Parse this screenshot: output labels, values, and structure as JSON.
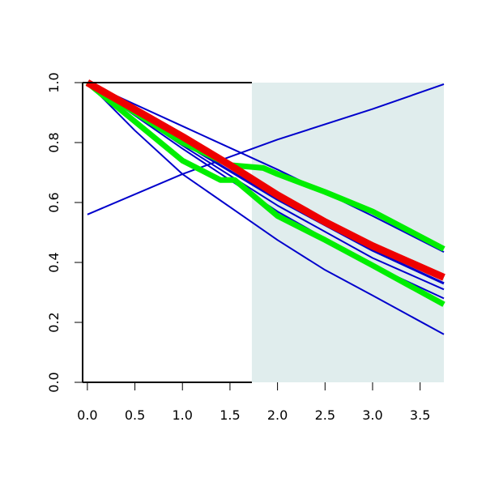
{
  "chart_data": {
    "type": "line",
    "title": "",
    "xlabel": "",
    "ylabel": "",
    "xlim": [
      -0.05,
      3.75
    ],
    "ylim": [
      0,
      1
    ],
    "x_ticks": [
      0.0,
      0.5,
      1.0,
      1.5,
      2.0,
      2.5,
      3.0,
      3.5
    ],
    "x_tick_labels": [
      "0.0",
      "0.5",
      "1.0",
      "1.5",
      "2.0",
      "2.5",
      "3.0",
      "3.5"
    ],
    "y_ticks": [
      0.0,
      0.2,
      0.4,
      0.6,
      0.8,
      1.0
    ],
    "y_tick_labels": [
      "0.0",
      "0.2",
      "0.4",
      "0.6",
      "0.8",
      "1.0"
    ],
    "grid": false,
    "shaded_region": {
      "x_from": 1.73,
      "x_to": 3.75,
      "color": "#e0eded"
    },
    "series": [
      {
        "color": "#0000cc",
        "weight": "thin",
        "x": [
          0.0,
          1.0,
          2.0,
          3.0,
          3.75
        ],
        "y": [
          0.56,
          0.695,
          0.81,
          0.912,
          0.995
        ]
      },
      {
        "color": "#0000cc",
        "weight": "thin",
        "x": [
          0.0,
          0.5,
          1.0,
          1.5,
          2.0,
          2.5,
          3.0,
          3.75
        ],
        "y": [
          1.0,
          0.84,
          0.695,
          0.585,
          0.475,
          0.375,
          0.29,
          0.16
        ]
      },
      {
        "color": "#0000cc",
        "weight": "thin",
        "x": [
          0.0,
          1.0,
          2.0,
          3.0,
          3.75
        ],
        "y": [
          1.0,
          0.855,
          0.71,
          0.555,
          0.435
        ]
      },
      {
        "color": "#0000cc",
        "weight": "thin",
        "x": [
          0.0,
          1.0,
          2.0,
          3.0,
          3.75
        ],
        "y": [
          1.0,
          0.79,
          0.59,
          0.415,
          0.31
        ]
      },
      {
        "color": "#0000cc",
        "weight": "thin",
        "x": [
          0.0,
          1.0,
          2.0,
          3.0,
          3.75
        ],
        "y": [
          1.0,
          0.78,
          0.57,
          0.39,
          0.28
        ]
      },
      {
        "color": "#0000cc",
        "weight": "medium",
        "x": [
          0.0,
          1.0,
          2.0,
          3.0,
          3.75
        ],
        "y": [
          1.0,
          0.8,
          0.61,
          0.44,
          0.33
        ]
      },
      {
        "color": "#00ee00",
        "weight": "thick",
        "x": [
          0.0,
          0.5,
          1.0,
          1.5,
          1.85,
          2.0,
          2.5,
          3.0,
          3.75
        ],
        "y": [
          1.0,
          0.9,
          0.8,
          0.725,
          0.715,
          0.695,
          0.635,
          0.57,
          0.445
        ]
      },
      {
        "color": "#00ee00",
        "weight": "thick",
        "x": [
          0.0,
          0.5,
          1.0,
          1.4,
          1.55,
          2.0,
          2.5,
          3.0,
          3.75
        ],
        "y": [
          1.0,
          0.87,
          0.74,
          0.675,
          0.675,
          0.555,
          0.475,
          0.39,
          0.26
        ]
      },
      {
        "color": "#ee0000",
        "weight": "thickest",
        "x": [
          0.0,
          0.5,
          1.0,
          1.5,
          2.0,
          2.5,
          3.0,
          3.75
        ],
        "y": [
          1.0,
          0.91,
          0.82,
          0.725,
          0.625,
          0.535,
          0.455,
          0.35
        ]
      }
    ]
  }
}
